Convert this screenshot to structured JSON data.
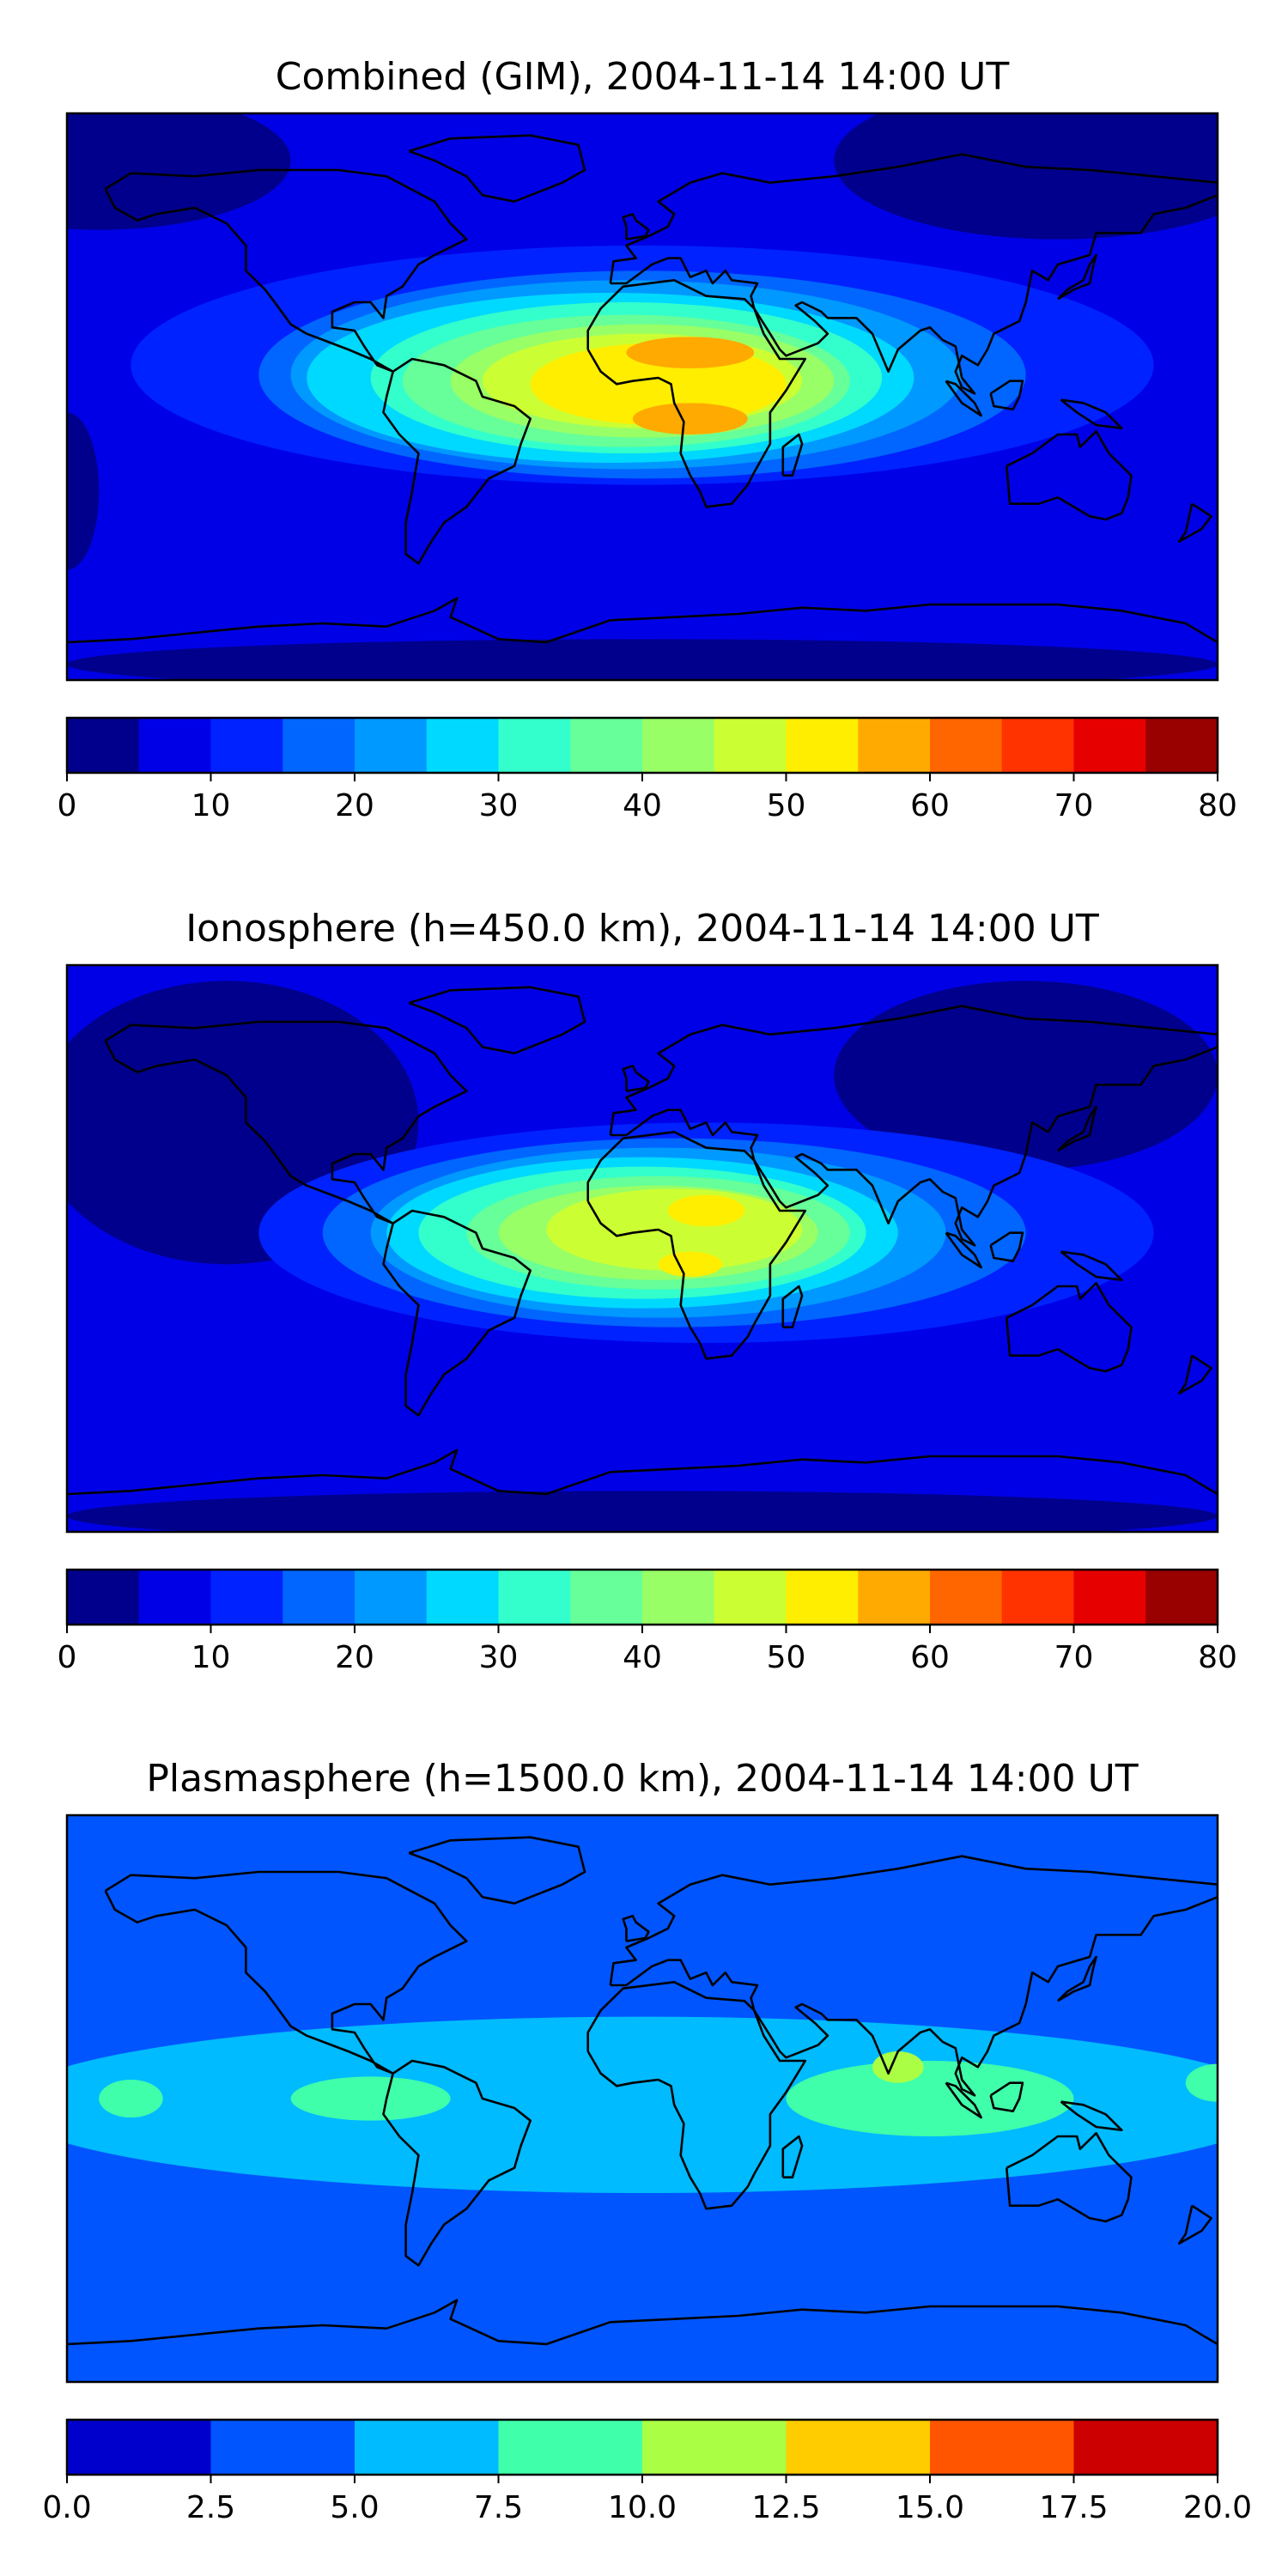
{
  "panels": [
    {
      "id": "combined",
      "title": "Combined (GIM), 2004-11-14 14:00 UT",
      "colorbar": {
        "levels": [
          0,
          5,
          10,
          15,
          20,
          25,
          30,
          35,
          40,
          45,
          50,
          55,
          60,
          65,
          70,
          75,
          80
        ],
        "tick_values": [
          0,
          10,
          20,
          30,
          40,
          50,
          60,
          70,
          80
        ],
        "tick_labels": [
          "0",
          "10",
          "20",
          "30",
          "40",
          "50",
          "60",
          "70",
          "80"
        ],
        "colors": [
          "#00008c",
          "#0000e6",
          "#0022ff",
          "#0066ff",
          "#0099ff",
          "#00d9ff",
          "#33ffcc",
          "#66ff99",
          "#99ff66",
          "#ccff33",
          "#ffee00",
          "#ffaa00",
          "#ff6600",
          "#ff3300",
          "#e60000",
          "#990000"
        ]
      },
      "contours": [
        {
          "lon": -170,
          "lat": 75,
          "rx": 60,
          "ry": 22,
          "level": 0
        },
        {
          "lon": 130,
          "lat": 75,
          "rx": 70,
          "ry": 25,
          "level": 0
        },
        {
          "lon": 0,
          "lat": -85,
          "rx": 180,
          "ry": 8,
          "level": 0
        },
        {
          "lon": -180,
          "lat": -30,
          "rx": 10,
          "ry": 25,
          "level": 0
        },
        {
          "lon": 0,
          "lat": 10,
          "rx": 160,
          "ry": 38,
          "level": 2
        },
        {
          "lon": 0,
          "lat": 7,
          "rx": 120,
          "ry": 33,
          "level": 3
        },
        {
          "lon": -5,
          "lat": 7,
          "rx": 105,
          "ry": 30,
          "level": 4
        },
        {
          "lon": -10,
          "lat": 6,
          "rx": 95,
          "ry": 27,
          "level": 5
        },
        {
          "lon": -5,
          "lat": 6,
          "rx": 80,
          "ry": 24,
          "level": 6
        },
        {
          "lon": -5,
          "lat": 5,
          "rx": 70,
          "ry": 21,
          "level": 7
        },
        {
          "lon": 0,
          "lat": 5,
          "rx": 60,
          "ry": 18,
          "level": 8
        },
        {
          "lon": 0,
          "lat": 5,
          "rx": 50,
          "ry": 15,
          "level": 9
        },
        {
          "lon": 5,
          "lat": 4,
          "rx": 40,
          "ry": 13,
          "level": 10
        },
        {
          "lon": 15,
          "lat": 14,
          "rx": 20,
          "ry": 5,
          "level": 11
        },
        {
          "lon": 15,
          "lat": -7,
          "rx": 18,
          "ry": 5,
          "level": 11
        }
      ]
    },
    {
      "id": "ionosphere",
      "title": "Ionosphere  (h=450.0 km), 2004-11-14 14:00 UT",
      "colorbar": {
        "levels": [
          0,
          5,
          10,
          15,
          20,
          25,
          30,
          35,
          40,
          45,
          50,
          55,
          60,
          65,
          70,
          75,
          80
        ],
        "tick_values": [
          0,
          10,
          20,
          30,
          40,
          50,
          60,
          70,
          80
        ],
        "tick_labels": [
          "0",
          "10",
          "20",
          "30",
          "40",
          "50",
          "60",
          "70",
          "80"
        ],
        "colors": [
          "#00008c",
          "#0000e6",
          "#0022ff",
          "#0066ff",
          "#0099ff",
          "#00d9ff",
          "#33ffcc",
          "#66ff99",
          "#99ff66",
          "#ccff33",
          "#ffee00",
          "#ffaa00",
          "#ff6600",
          "#ff3300",
          "#e60000",
          "#990000"
        ]
      },
      "contours": [
        {
          "lon": -130,
          "lat": 40,
          "rx": 60,
          "ry": 45,
          "level": 0
        },
        {
          "lon": 120,
          "lat": 55,
          "rx": 60,
          "ry": 30,
          "level": 0
        },
        {
          "lon": 0,
          "lat": -85,
          "rx": 180,
          "ry": 8,
          "level": 0
        },
        {
          "lon": 20,
          "lat": 5,
          "rx": 140,
          "ry": 35,
          "level": 2
        },
        {
          "lon": 10,
          "lat": 5,
          "rx": 110,
          "ry": 30,
          "level": 3
        },
        {
          "lon": 5,
          "lat": 5,
          "rx": 90,
          "ry": 27,
          "level": 4
        },
        {
          "lon": 0,
          "lat": 5,
          "rx": 80,
          "ry": 24,
          "level": 5
        },
        {
          "lon": 0,
          "lat": 5,
          "rx": 70,
          "ry": 21,
          "level": 6
        },
        {
          "lon": 5,
          "lat": 5,
          "rx": 60,
          "ry": 18,
          "level": 7
        },
        {
          "lon": 5,
          "lat": 5,
          "rx": 50,
          "ry": 15,
          "level": 8
        },
        {
          "lon": 10,
          "lat": 6,
          "rx": 40,
          "ry": 13,
          "level": 9
        },
        {
          "lon": 20,
          "lat": 12,
          "rx": 12,
          "ry": 5,
          "level": 10
        },
        {
          "lon": 15,
          "lat": -5,
          "rx": 10,
          "ry": 4,
          "level": 10
        }
      ]
    },
    {
      "id": "plasmasphere",
      "title": "Plasmasphere (h=1500.0 km), 2004-11-14 14:00 UT",
      "colorbar": {
        "levels": [
          0.0,
          2.5,
          5.0,
          7.5,
          10.0,
          12.5,
          15.0,
          17.5,
          20.0
        ],
        "tick_values": [
          0.0,
          2.5,
          5.0,
          7.5,
          10.0,
          12.5,
          15.0,
          17.5,
          20.0
        ],
        "tick_labels": [
          "0.0",
          "2.5",
          "5.0",
          "7.5",
          "10.0",
          "12.5",
          "15.0",
          "17.5",
          "20.0"
        ],
        "colors": [
          "#0000cc",
          "#0055ff",
          "#00bbff",
          "#40ffaa",
          "#aaff44",
          "#ffcc00",
          "#ff5500",
          "#cc0000"
        ]
      },
      "contours": [
        {
          "lon": 0,
          "lat": 5,
          "rx": 200,
          "ry": 45,
          "level": 1
        },
        {
          "lon": 0,
          "lat": -2,
          "rx": 200,
          "ry": 28,
          "level": 2
        },
        {
          "lon": -160,
          "lat": 0,
          "rx": 10,
          "ry": 6,
          "level": 3
        },
        {
          "lon": -85,
          "lat": 0,
          "rx": 25,
          "ry": 7,
          "level": 3
        },
        {
          "lon": 90,
          "lat": 0,
          "rx": 45,
          "ry": 12,
          "level": 3
        },
        {
          "lon": 180,
          "lat": 5,
          "rx": 10,
          "ry": 6,
          "level": 3
        },
        {
          "lon": 80,
          "lat": 10,
          "rx": 8,
          "ry": 5,
          "level": 4
        }
      ]
    }
  ]
}
